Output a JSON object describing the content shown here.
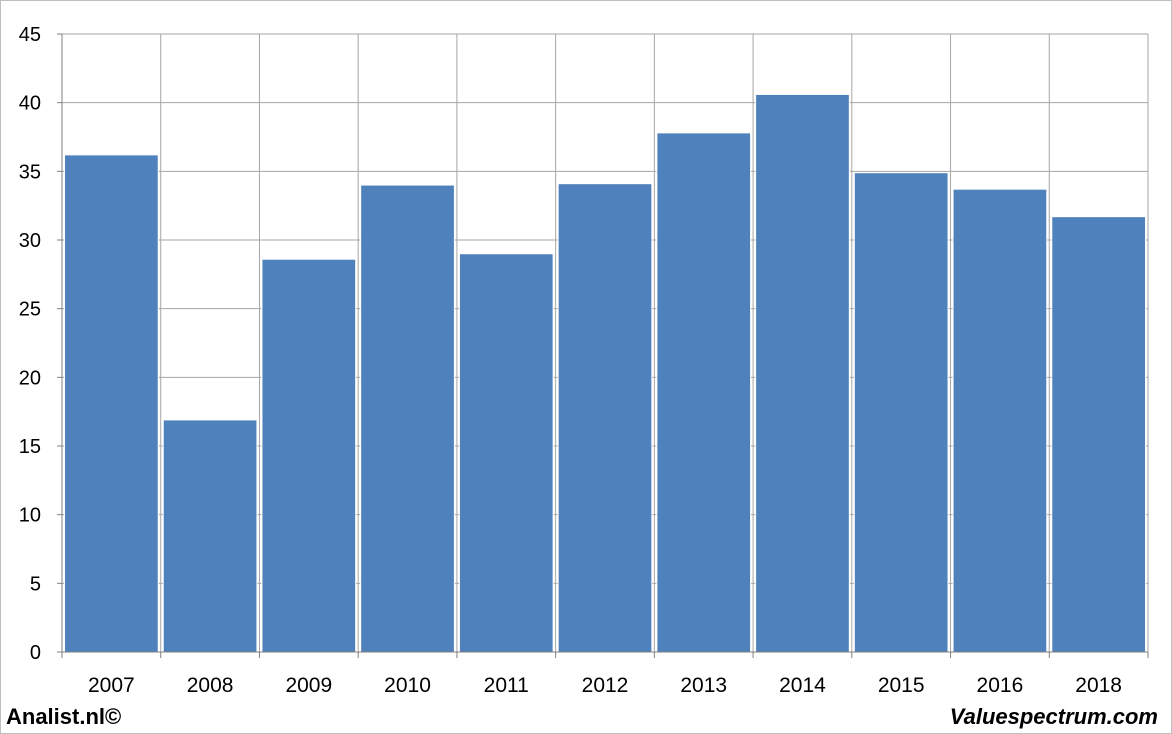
{
  "chart_data": {
    "type": "bar",
    "categories": [
      "2007",
      "2008",
      "2009",
      "2010",
      "2011",
      "2012",
      "2013",
      "2014",
      "2015",
      "2016",
      "2018"
    ],
    "values": [
      36.2,
      16.9,
      28.6,
      34.0,
      29.0,
      34.1,
      37.8,
      40.6,
      34.9,
      33.7,
      31.7
    ],
    "ylim": [
      0,
      45
    ],
    "yticks": [
      "0",
      "5",
      "10",
      "15",
      "20",
      "25",
      "30",
      "35",
      "40",
      "45"
    ],
    "grid": true,
    "bar_color": "#4f81bd"
  },
  "footer": {
    "left": "Analist.nl©",
    "right": "Valuespectrum.com"
  }
}
